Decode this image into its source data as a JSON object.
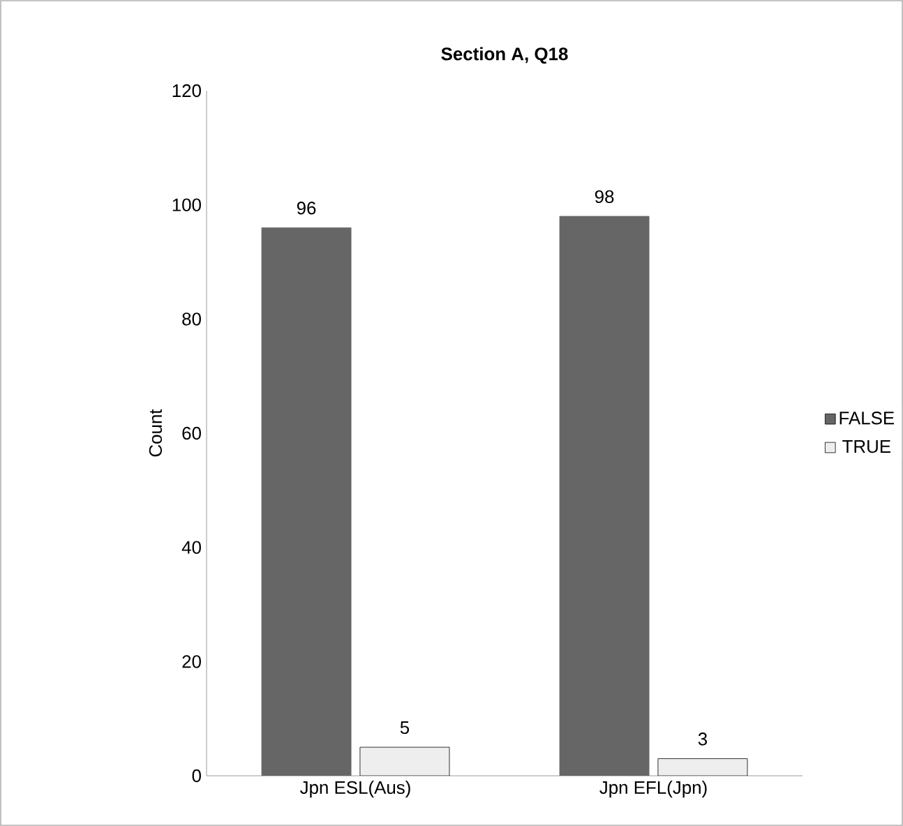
{
  "chart_data": {
    "type": "bar",
    "title": "Section A, Q18",
    "ylabel": "Count",
    "categories": [
      "Jpn ESL(Aus)",
      "Jpn EFL(Jpn)"
    ],
    "series": [
      {
        "name": "FALSE",
        "color": "#666666",
        "values": [
          96,
          98
        ]
      },
      {
        "name": "TRUE",
        "color": "#eeeeee",
        "values": [
          5,
          3
        ]
      }
    ],
    "ylim": [
      0,
      120
    ],
    "yticks": [
      0,
      20,
      40,
      60,
      80,
      100,
      120
    ],
    "grid": false,
    "legend": "right",
    "data_labels": true
  }
}
